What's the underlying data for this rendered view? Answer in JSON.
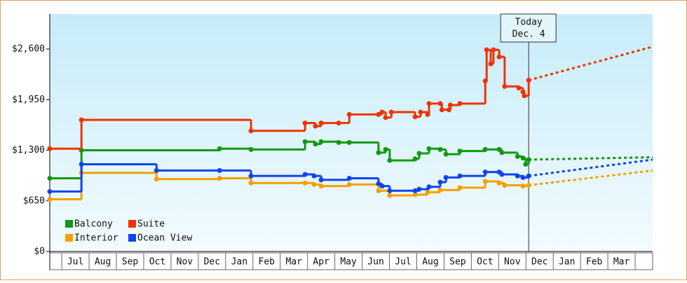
{
  "chart_data": {
    "type": "step-line",
    "categories": [
      "Jul",
      "Aug",
      "Sep",
      "Oct",
      "Nov",
      "Dec",
      "Jan",
      "Feb",
      "Mar",
      "Apr",
      "May",
      "Jun",
      "Jul",
      "Aug",
      "Sep",
      "Oct",
      "Nov",
      "Dec",
      "Jan",
      "Feb",
      "Mar"
    ],
    "xlim": [
      -0.44,
      21.64
    ],
    "ylim": [
      0,
      3050
    ],
    "yticks": [
      {
        "value": 0,
        "label": "$0"
      },
      {
        "value": 650,
        "label": "$650"
      },
      {
        "value": 1300,
        "label": "$1,300"
      },
      {
        "value": 1950,
        "label": "$1,950"
      },
      {
        "value": 2600,
        "label": "$2,600"
      }
    ],
    "today": {
      "x": 17.1,
      "label": [
        "Today",
        "Dec. 4"
      ]
    },
    "series": [
      {
        "name": "Balcony",
        "color": "#119911",
        "x": [
          -0.44,
          0.72,
          5.78,
          6.93,
          8.91,
          9.29,
          9.5,
          10.14,
          10.53,
          11.6,
          11.86,
          12.01,
          12.94,
          13.09,
          13.45,
          13.86,
          14.07,
          14.58,
          15.51,
          16.02,
          16.12,
          16.69,
          16.89,
          16.99,
          17.1
        ],
        "values": [
          940,
          1300,
          1320,
          1310,
          1410,
          1380,
          1410,
          1400,
          1400,
          1270,
          1310,
          1170,
          1190,
          1260,
          1320,
          1310,
          1250,
          1290,
          1310,
          1310,
          1270,
          1220,
          1200,
          1120,
          1180
        ],
        "forecast": {
          "x": [
            17.1,
            21.64
          ],
          "values": [
            1180,
            1210
          ]
        }
      },
      {
        "name": "Suite",
        "color": "#ee3300",
        "x": [
          -0.44,
          0.72,
          6.93,
          8.91,
          9.29,
          9.5,
          10.14,
          10.53,
          11.6,
          11.73,
          11.86,
          12.07,
          12.94,
          13.14,
          13.4,
          13.45,
          13.86,
          13.92,
          14.18,
          14.23,
          14.58,
          15.51,
          15.56,
          15.71,
          15.81,
          16.02,
          16.22,
          16.74,
          16.89,
          16.94,
          17.1
        ],
        "values": [
          1320,
          1690,
          1550,
          1650,
          1610,
          1650,
          1650,
          1760,
          1760,
          1790,
          1720,
          1790,
          1730,
          1790,
          1760,
          1900,
          1900,
          1820,
          1820,
          1880,
          1900,
          2190,
          2590,
          2410,
          2590,
          2500,
          2120,
          2100,
          2050,
          2000,
          2200
        ],
        "forecast": {
          "x": [
            17.1,
            21.64
          ],
          "values": [
            2200,
            2630
          ]
        }
      },
      {
        "name": "Interior",
        "color": "#f5a000",
        "x": [
          -0.44,
          0.72,
          3.47,
          5.78,
          6.93,
          8.91,
          9.24,
          9.5,
          10.53,
          11.6,
          12.01,
          12.94,
          13.4,
          13.86,
          14.58,
          15.51,
          16.02,
          16.22,
          16.89,
          17.1
        ],
        "values": [
          670,
          1010,
          930,
          940,
          880,
          880,
          860,
          840,
          860,
          780,
          720,
          730,
          760,
          790,
          820,
          900,
          880,
          850,
          840,
          850
        ],
        "forecast": {
          "x": [
            17.1,
            21.64
          ],
          "values": [
            850,
            1040
          ]
        }
      },
      {
        "name": "Ocean View",
        "color": "#1144ee",
        "x": [
          -0.44,
          0.72,
          3.47,
          5.78,
          6.93,
          8.91,
          9.24,
          9.5,
          10.53,
          11.6,
          11.73,
          12.01,
          12.94,
          13.09,
          13.45,
          13.86,
          14.07,
          14.58,
          15.51,
          16.02,
          16.12,
          16.69,
          16.89,
          17.1
        ],
        "values": [
          770,
          1120,
          1040,
          1040,
          970,
          990,
          970,
          920,
          940,
          870,
          840,
          780,
          780,
          800,
          830,
          890,
          950,
          970,
          1020,
          1020,
          990,
          970,
          950,
          970
        ],
        "forecast": {
          "x": [
            17.1,
            21.64
          ],
          "values": [
            970,
            1180
          ]
        }
      }
    ]
  }
}
